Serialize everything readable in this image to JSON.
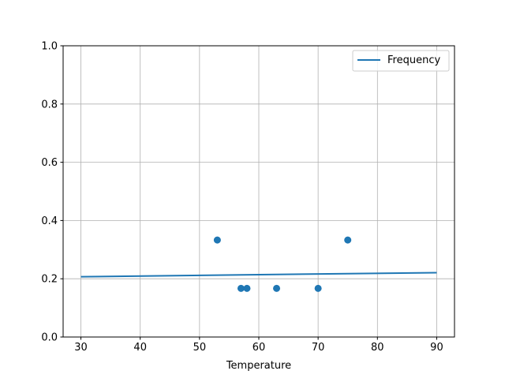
{
  "chart_data": {
    "type": "scatter",
    "title": "",
    "xlabel": "Temperature",
    "ylabel": "",
    "xlim": [
      27,
      93
    ],
    "ylim": [
      0,
      1.0
    ],
    "xticks": [
      30,
      40,
      50,
      60,
      70,
      80,
      90
    ],
    "yticks": [
      0.0,
      0.2,
      0.4,
      0.6,
      0.8,
      1.0
    ],
    "xtick_labels": [
      "30",
      "40",
      "50",
      "60",
      "70",
      "80",
      "90"
    ],
    "ytick_labels": [
      "0.0",
      "0.2",
      "0.4",
      "0.6",
      "0.8",
      "1.0"
    ],
    "grid": true,
    "legend": {
      "placement": "top-right",
      "entries": [
        "Frequency"
      ]
    },
    "series": [
      {
        "name": "Frequency",
        "kind": "line",
        "color": "#1f77b4",
        "x": [
          30,
          90
        ],
        "y": [
          0.207,
          0.221
        ]
      },
      {
        "kind": "scatter",
        "color": "#1f77b4",
        "x": [
          53,
          57,
          58,
          63,
          70,
          75
        ],
        "y": [
          0.333,
          0.167,
          0.167,
          0.167,
          0.167,
          0.333
        ]
      }
    ]
  }
}
